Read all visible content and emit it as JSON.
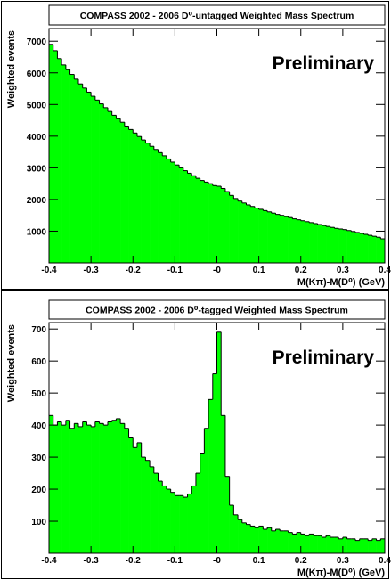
{
  "chart_data": [
    {
      "type": "histogram",
      "title": "COMPASS 2002 - 2006 D⁰-untagged Weighted Mass Spectrum",
      "x_label": "M(Kπ)-M(D⁰) (GeV)",
      "y_label": "Weighted events",
      "annotation": "Preliminary",
      "annotation_color": "#c86464",
      "color": "#00ff00",
      "bins": [
        -0.4,
        -0.39,
        -0.38,
        -0.37,
        -0.36,
        -0.35,
        -0.34,
        -0.33,
        -0.32,
        -0.31,
        -0.3,
        -0.29,
        -0.28,
        -0.27,
        -0.26,
        -0.25,
        -0.24,
        -0.23,
        -0.22,
        -0.21,
        -0.2,
        -0.19,
        -0.18,
        -0.17,
        -0.16,
        -0.15,
        -0.14,
        -0.13,
        -0.12,
        -0.11,
        -0.1,
        -0.09,
        -0.08,
        -0.07,
        -0.06,
        -0.05,
        -0.04,
        -0.03,
        -0.02,
        -0.01,
        0,
        0.01,
        0.02,
        0.03,
        0.04,
        0.05,
        0.06,
        0.07,
        0.08,
        0.09,
        0.1,
        0.11,
        0.12,
        0.13,
        0.14,
        0.15,
        0.16,
        0.17,
        0.18,
        0.19,
        0.2,
        0.21,
        0.22,
        0.23,
        0.24,
        0.25,
        0.26,
        0.27,
        0.28,
        0.29,
        0.3,
        0.31,
        0.32,
        0.33,
        0.34,
        0.35,
        0.36,
        0.37,
        0.38,
        0.39,
        0.4
      ],
      "values": [
        6900,
        6700,
        6450,
        6250,
        6100,
        5950,
        5800,
        5650,
        5520,
        5390,
        5260,
        5140,
        5020,
        4900,
        4780,
        4660,
        4550,
        4440,
        4320,
        4210,
        4100,
        3990,
        3880,
        3780,
        3680,
        3580,
        3480,
        3380,
        3280,
        3180,
        3090,
        3000,
        2910,
        2830,
        2750,
        2670,
        2600,
        2550,
        2500,
        2440,
        2420,
        2350,
        2250,
        2130,
        2030,
        1950,
        1890,
        1830,
        1780,
        1730,
        1690,
        1650,
        1610,
        1570,
        1530,
        1500,
        1460,
        1430,
        1390,
        1360,
        1330,
        1300,
        1270,
        1240,
        1210,
        1180,
        1150,
        1120,
        1090,
        1070,
        1050,
        1020,
        990,
        960,
        930,
        900,
        870,
        840,
        810,
        760
      ],
      "xlim": [
        -0.4,
        0.4
      ],
      "xticks": [
        -0.4,
        -0.3,
        -0.2,
        -0.1,
        {
          "value": 0,
          "label": "-0"
        },
        0.1,
        0.2,
        0.3,
        0.4
      ],
      "ylim": [
        0,
        7400
      ],
      "yticks": [
        1000,
        2000,
        3000,
        4000,
        5000,
        6000,
        7000
      ]
    },
    {
      "type": "histogram",
      "title": "COMPASS 2002 - 2006 D⁰-tagged Weighted Mass Spectrum",
      "x_label": "M(Kπ)-M(D⁰) (GeV)",
      "y_label": "Weighted events",
      "annotation": "Preliminary",
      "annotation_color": "#c86464",
      "color": "#00ff00",
      "bins": [
        -0.4,
        -0.39,
        -0.38,
        -0.37,
        -0.36,
        -0.35,
        -0.34,
        -0.33,
        -0.32,
        -0.31,
        -0.3,
        -0.29,
        -0.28,
        -0.27,
        -0.26,
        -0.25,
        -0.24,
        -0.23,
        -0.22,
        -0.21,
        -0.2,
        -0.19,
        -0.18,
        -0.17,
        -0.16,
        -0.15,
        -0.14,
        -0.13,
        -0.12,
        -0.11,
        -0.1,
        -0.09,
        -0.08,
        -0.07,
        -0.06,
        -0.05,
        -0.04,
        -0.03,
        -0.02,
        -0.01,
        0,
        0.01,
        0.02,
        0.03,
        0.04,
        0.05,
        0.06,
        0.07,
        0.08,
        0.09,
        0.1,
        0.11,
        0.12,
        0.13,
        0.14,
        0.15,
        0.16,
        0.17,
        0.18,
        0.19,
        0.2,
        0.21,
        0.22,
        0.23,
        0.24,
        0.25,
        0.26,
        0.27,
        0.28,
        0.29,
        0.3,
        0.31,
        0.32,
        0.33,
        0.34,
        0.35,
        0.36,
        0.37,
        0.38,
        0.39,
        0.4
      ],
      "values": [
        430,
        400,
        410,
        400,
        415,
        390,
        405,
        395,
        410,
        400,
        395,
        410,
        405,
        400,
        410,
        415,
        420,
        405,
        390,
        360,
        330,
        345,
        300,
        290,
        270,
        250,
        225,
        210,
        200,
        190,
        180,
        180,
        175,
        185,
        210,
        250,
        310,
        390,
        480,
        560,
        690,
        430,
        240,
        150,
        120,
        105,
        95,
        90,
        85,
        80,
        85,
        75,
        80,
        70,
        75,
        70,
        70,
        65,
        60,
        65,
        60,
        55,
        60,
        55,
        55,
        50,
        55,
        50,
        50,
        45,
        50,
        45,
        45,
        40,
        45,
        45,
        40,
        45,
        40,
        45
      ],
      "xlim": [
        -0.4,
        0.4
      ],
      "xticks": [
        -0.4,
        -0.3,
        -0.2,
        -0.1,
        {
          "value": 0,
          "label": "-0"
        },
        0.1,
        0.2,
        0.3,
        0.4
      ],
      "ylim": [
        0,
        720
      ],
      "yticks": [
        100,
        200,
        300,
        400,
        500,
        600,
        700
      ]
    }
  ]
}
